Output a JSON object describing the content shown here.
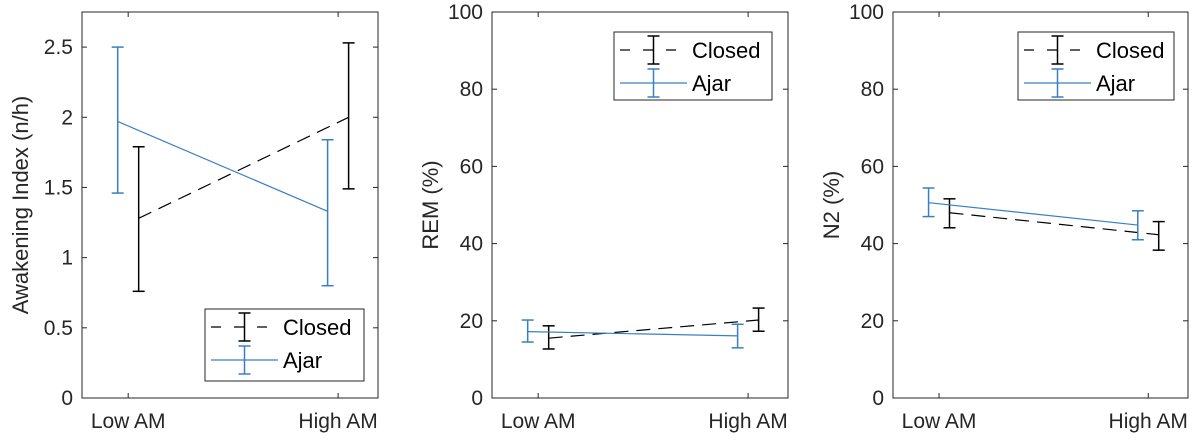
{
  "chart_data": [
    {
      "type": "line",
      "ylabel": "Awakening Index (n/h)",
      "categories": [
        "Low AM",
        "High AM"
      ],
      "ylim": [
        0,
        2.75
      ],
      "yticks": [
        "0",
        "0.5",
        "1",
        "1.5",
        "2",
        "2.5"
      ],
      "legend": "bottom-right",
      "grid": false,
      "series": [
        {
          "name": "Closed",
          "color": "#000000",
          "style": "dashed",
          "values": [
            1.28,
            2.0
          ],
          "lower": [
            0.76,
            1.49
          ],
          "upper": [
            1.79,
            2.53
          ]
        },
        {
          "name": "Ajar",
          "color": "#3a7fc1",
          "style": "solid",
          "values": [
            1.97,
            1.33
          ],
          "lower": [
            1.46,
            0.8
          ],
          "upper": [
            2.5,
            1.84
          ]
        }
      ]
    },
    {
      "type": "line",
      "ylabel": "REM (%)",
      "categories": [
        "Low AM",
        "High AM"
      ],
      "ylim": [
        0,
        100
      ],
      "yticks": [
        "0",
        "20",
        "40",
        "60",
        "80",
        "100"
      ],
      "legend": "top-right",
      "grid": false,
      "series": [
        {
          "name": "Closed",
          "color": "#000000",
          "style": "dashed",
          "values": [
            15.5,
            20.2
          ],
          "lower": [
            12.7,
            17.3
          ],
          "upper": [
            18.7,
            23.3
          ]
        },
        {
          "name": "Ajar",
          "color": "#3a7fc1",
          "style": "solid",
          "values": [
            17.2,
            16.1
          ],
          "lower": [
            14.5,
            13.0
          ],
          "upper": [
            20.2,
            19.1
          ]
        }
      ]
    },
    {
      "type": "line",
      "ylabel": "N2 (%)",
      "categories": [
        "Low AM",
        "High AM"
      ],
      "ylim": [
        0,
        100
      ],
      "yticks": [
        "0",
        "20",
        "40",
        "60",
        "80",
        "100"
      ],
      "legend": "top-right",
      "grid": false,
      "series": [
        {
          "name": "Closed",
          "color": "#000000",
          "style": "dashed",
          "values": [
            48.0,
            42.3
          ],
          "lower": [
            44.1,
            38.3
          ],
          "upper": [
            51.6,
            45.7
          ]
        },
        {
          "name": "Ajar",
          "color": "#3a7fc1",
          "style": "solid",
          "values": [
            50.6,
            44.8
          ],
          "lower": [
            47.0,
            41.0
          ],
          "upper": [
            54.4,
            48.5
          ]
        }
      ]
    }
  ]
}
